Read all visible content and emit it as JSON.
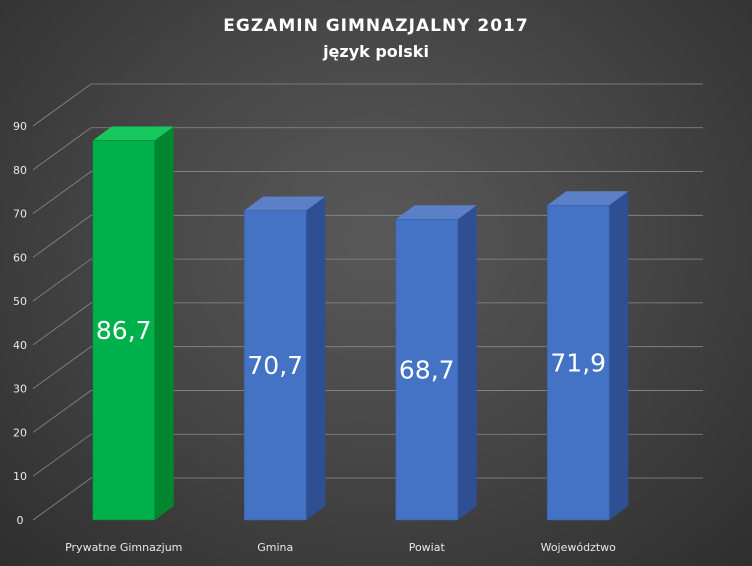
{
  "chart_data": {
    "type": "bar",
    "title": "EGZAMIN GIMNAZJALNY 2017",
    "subtitle": "język polski",
    "xlabel": "",
    "ylabel": "",
    "ylim": [
      0,
      90
    ],
    "yticks": [
      0,
      10,
      20,
      30,
      40,
      50,
      60,
      70,
      80,
      90
    ],
    "grid": true,
    "three_d": true,
    "legend": "none",
    "categories": [
      "Prywatne Gimnazjum",
      "Gmina",
      "Powiat",
      "Województwo"
    ],
    "values": [
      86.7,
      70.7,
      68.7,
      71.9
    ],
    "data_labels": [
      "86,7",
      "70,7",
      "68,7",
      "71,9"
    ],
    "colors": [
      "#00b050",
      "#4472c4",
      "#4472c4",
      "#4472c4"
    ]
  }
}
